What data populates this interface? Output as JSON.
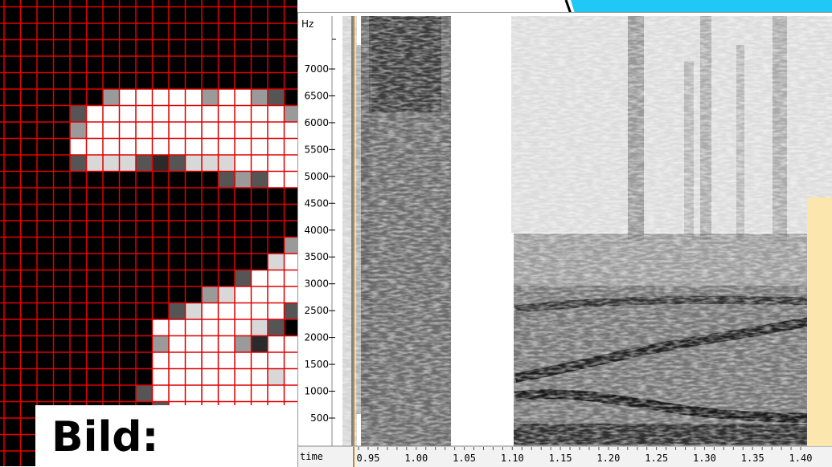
{
  "caption": "Bild:",
  "spectrogram": {
    "y_unit": "Hz",
    "x_label": "time",
    "y_ticks": [
      "7000",
      "6500",
      "6000",
      "5500",
      "5000",
      "4500",
      "4000",
      "3500",
      "3000",
      "2500",
      "2000",
      "1500",
      "1000",
      "500"
    ],
    "x_ticks": [
      "0.95",
      "1.00",
      "1.05",
      "1.10",
      "1.15",
      "1.20",
      "1.25",
      "1.30",
      "1.35",
      "1.40"
    ]
  },
  "colors": {
    "grid_line": "#e00000",
    "accent_blue": "#21c7f5",
    "yellow_panel": "#fbe6ad",
    "cursor": "#c58a1e"
  }
}
